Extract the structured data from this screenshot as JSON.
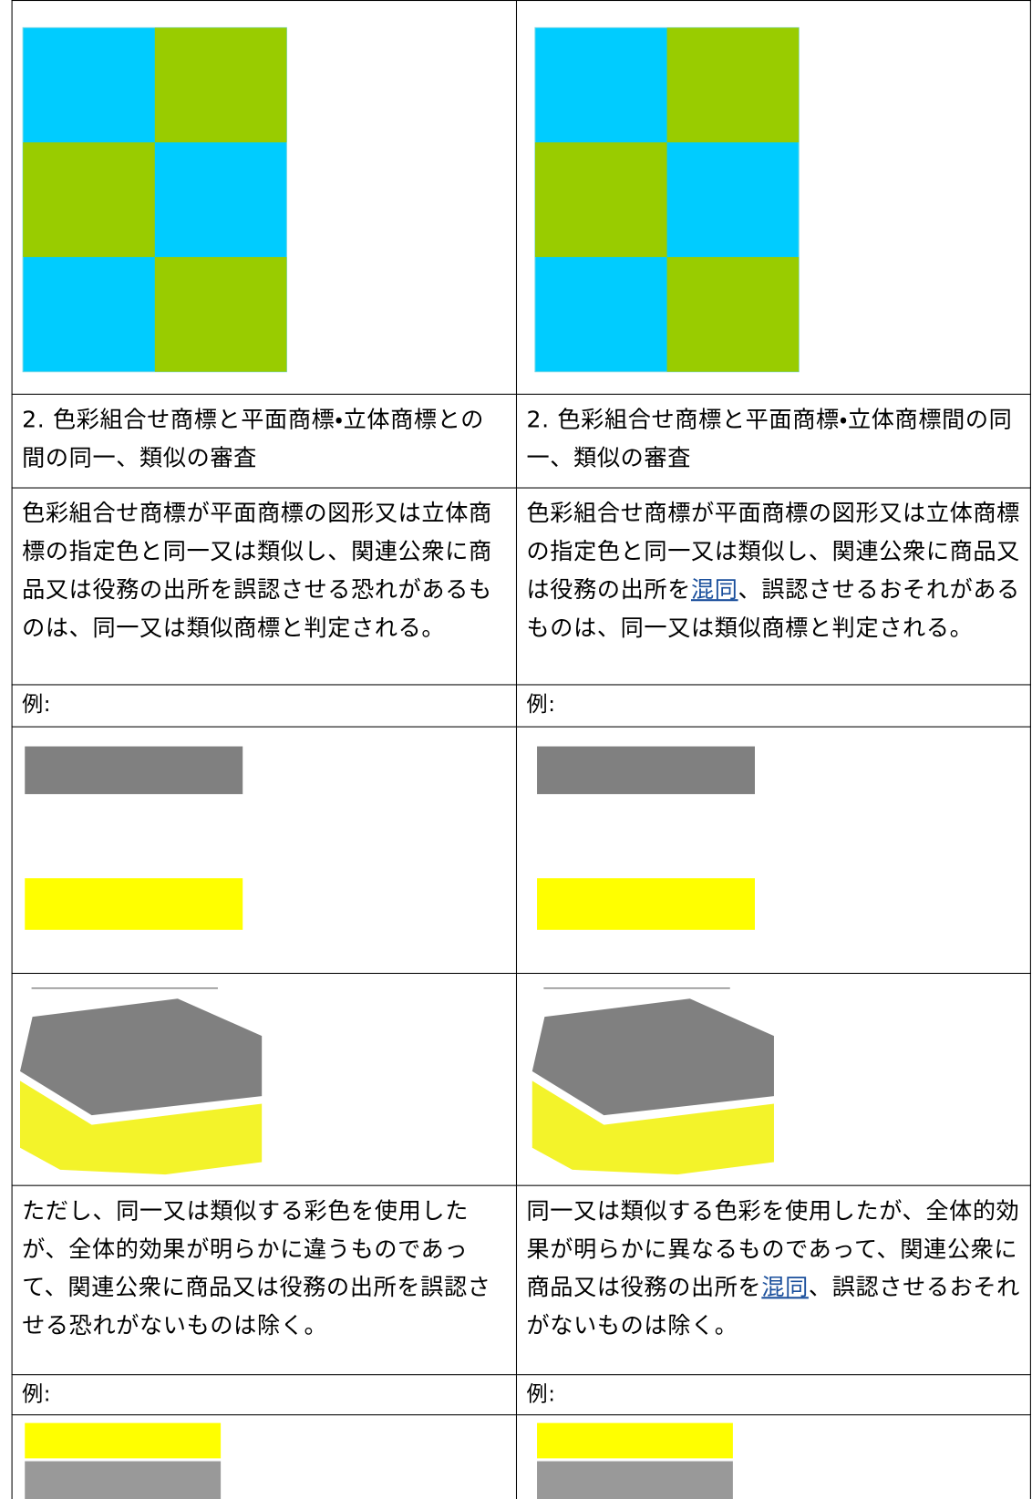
{
  "table": {
    "rows": [
      {
        "left": "2. 色彩組合せ商標と平面商標・立体商標との間の同一、類似の審査",
        "right": "2. 色彩組合せ商標と平面商標・立体商標間の同一、類似の審査"
      },
      {
        "left": [
          "色彩組合せ商標が平面商標の図形又は立体商標の指定色と同一又は類似し、関連公衆に商品又は役務の出所を誤認させる恐れがあるものは、同一又は類似商標と判定される。"
        ],
        "right": [
          "色彩組合せ商標が平面商標の図形又は立体商標の指定色と同一又は類似し、関連公衆に商品又は役務の出所を",
          "混同",
          "、誤認させるおそれがあるものは、同一又は類似商標と判定される。"
        ]
      },
      {
        "left": "例:",
        "right": "例:"
      },
      {
        "left": [
          "ただし、同一又は類似する彩色を使用したが、全体的効果が明らかに違うものであって、関連公衆に商品又は役務の出所を誤認させる恐れがないものは除く。"
        ],
        "right": [
          "同一又は類似する色彩を使用したが、全体的効果が明らかに異なるものであって、関連公衆に商品又は役務の出所を",
          "混同",
          "、誤認させるおそれがないものは除く。"
        ]
      },
      {
        "left": "例:",
        "right": "例:"
      }
    ]
  }
}
